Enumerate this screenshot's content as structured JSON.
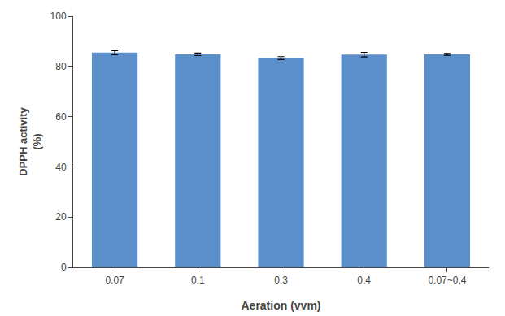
{
  "chart_data": {
    "type": "bar",
    "categories": [
      "0.07",
      "0.1",
      "0.3",
      "0.4",
      "0.07~0.4"
    ],
    "values": [
      85.5,
      84.8,
      83.3,
      84.7,
      84.8
    ],
    "errors": [
      0.8,
      0.5,
      0.6,
      0.9,
      0.4
    ],
    "color": "#5b8fc9",
    "xlabel": "Aeration (vvm)",
    "ylabel": "DPPH activity\n(%)",
    "ylim": [
      0,
      100
    ],
    "yticks": [
      0,
      20,
      40,
      60,
      80,
      100
    ],
    "grid": false
  }
}
